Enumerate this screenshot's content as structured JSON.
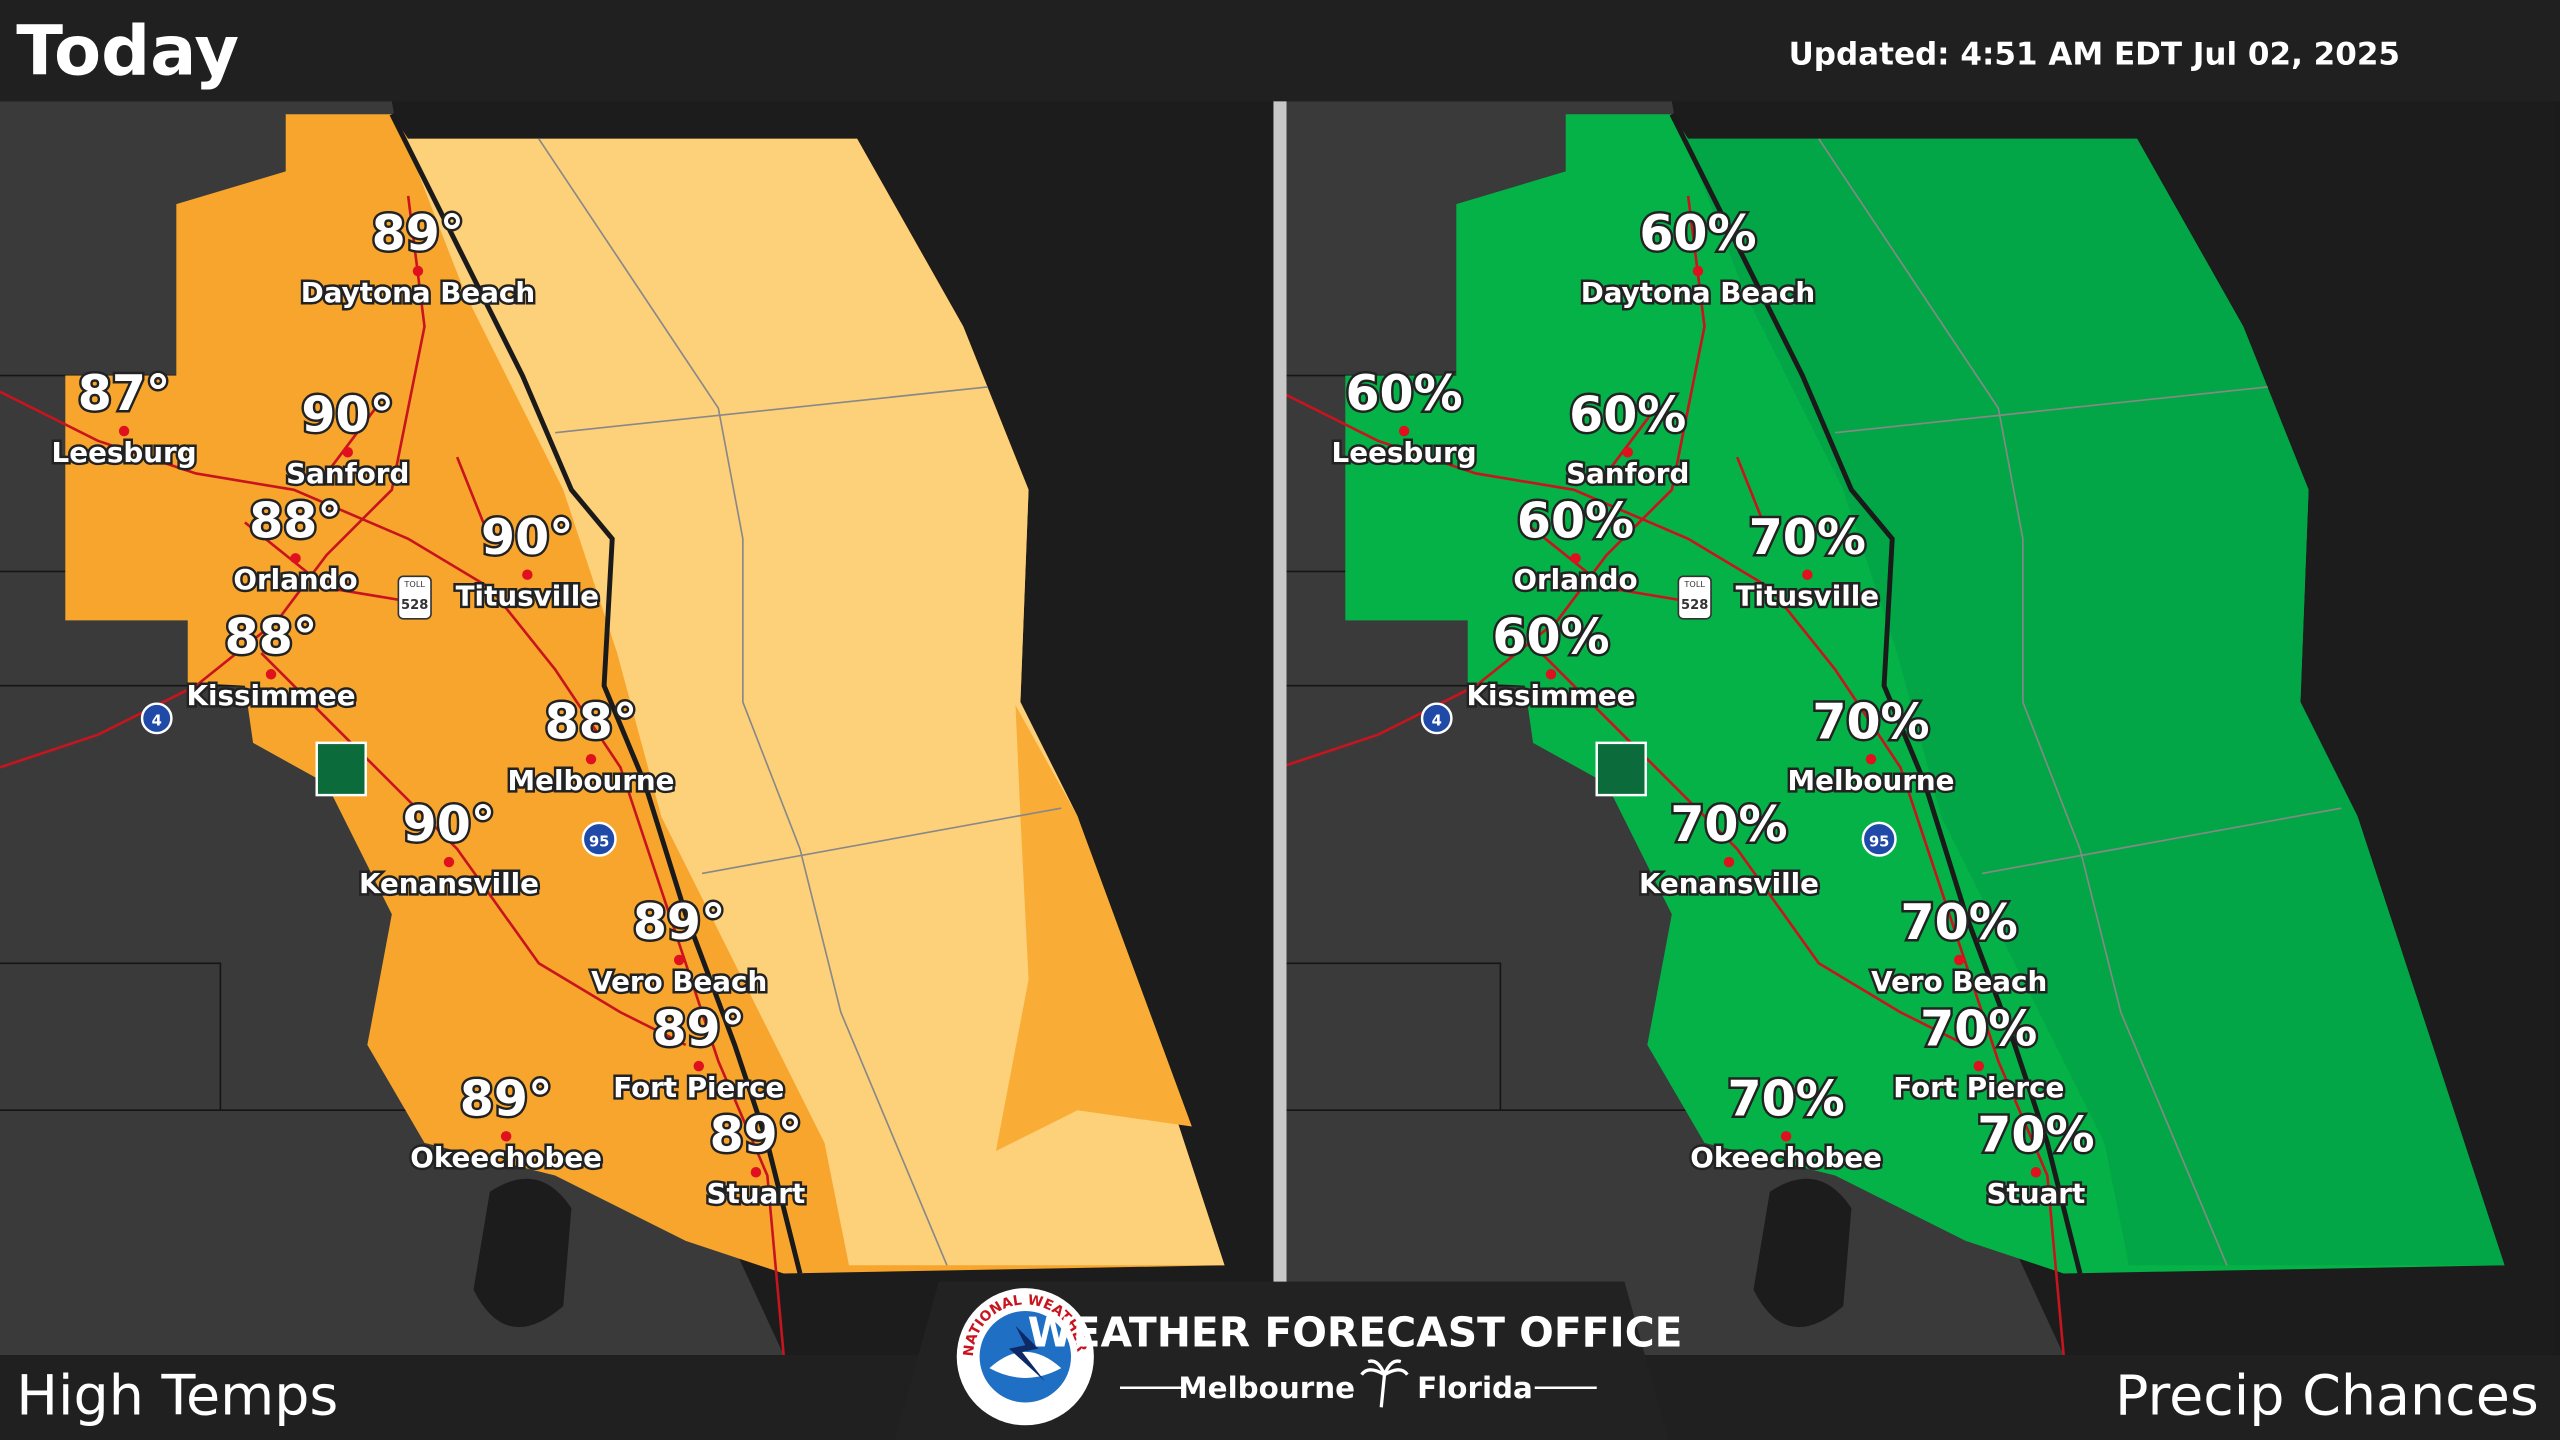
{
  "header": {
    "title": "Today",
    "updated": "Updated:  4:51 AM EDT Jul 02, 2025"
  },
  "maps": [
    {
      "label": "High Temps",
      "cities": [
        {
          "name": "Daytona Beach",
          "value": "89°"
        },
        {
          "name": "Leesburg",
          "value": "87°"
        },
        {
          "name": "Sanford",
          "value": "90°"
        },
        {
          "name": "Orlando",
          "value": "88°"
        },
        {
          "name": "Titusville",
          "value": "90°"
        },
        {
          "name": "Kissimmee",
          "value": "88°"
        },
        {
          "name": "Melbourne",
          "value": "88°"
        },
        {
          "name": "Kenansville",
          "value": "90°"
        },
        {
          "name": "Vero Beach",
          "value": "89°"
        },
        {
          "name": "Fort Pierce",
          "value": "89°"
        },
        {
          "name": "Okeechobee",
          "value": "89°"
        },
        {
          "name": "Stuart",
          "value": "89°"
        }
      ]
    },
    {
      "label": "Precip Chances",
      "cities": [
        {
          "name": "Daytona Beach",
          "value": "60%"
        },
        {
          "name": "Leesburg",
          "value": "60%"
        },
        {
          "name": "Sanford",
          "value": "60%"
        },
        {
          "name": "Orlando",
          "value": "60%"
        },
        {
          "name": "Titusville",
          "value": "70%"
        },
        {
          "name": "Kissimmee",
          "value": "60%"
        },
        {
          "name": "Melbourne",
          "value": "70%"
        },
        {
          "name": "Kenansville",
          "value": "70%"
        },
        {
          "name": "Vero Beach",
          "value": "70%"
        },
        {
          "name": "Fort Pierce",
          "value": "70%"
        },
        {
          "name": "Okeechobee",
          "value": "70%"
        },
        {
          "name": "Stuart",
          "value": "70%"
        }
      ]
    }
  ],
  "signs": {
    "toll": "TOLL",
    "sr": "528",
    "i4": "4",
    "i95": "95"
  },
  "footer": {
    "office": "WEATHER FORECAST OFFICE",
    "city": "Melbourne",
    "state": "Florida",
    "agency": "NATIONAL WEATHER SERVICE"
  }
}
